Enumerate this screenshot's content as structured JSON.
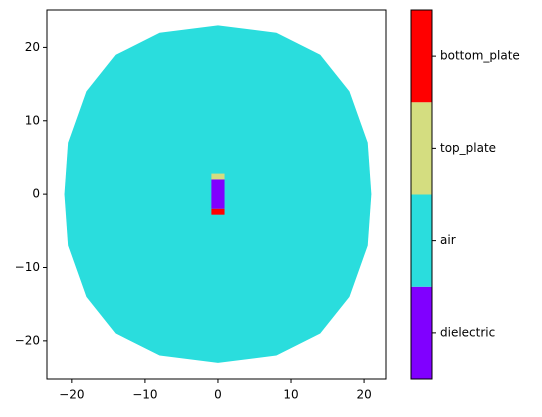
{
  "chart_data": {
    "type": "mesh",
    "xlim": [
      -23.4,
      23.0
    ],
    "ylim": [
      -25.2,
      25.1
    ],
    "xticks": [
      {
        "value": -20,
        "label": "−20"
      },
      {
        "value": -10,
        "label": "−10"
      },
      0,
      10,
      20
    ],
    "yticks": [
      {
        "value": -20,
        "label": "−20"
      },
      {
        "value": -10,
        "label": "−10"
      },
      0,
      10,
      20
    ],
    "series": [
      {
        "name": "dielectric",
        "color": "#8000ff",
        "x": [
          -0.9,
          0.9,
          0.9,
          -0.9
        ],
        "y": [
          -2,
          -2,
          2,
          2
        ]
      },
      {
        "name": "air",
        "color": "#2adddd",
        "x": [
          0,
          8,
          14,
          18,
          20.5,
          21,
          20.5,
          18,
          14,
          8,
          0,
          -8,
          -14,
          -18,
          -20.5,
          -21,
          -20.5,
          -18,
          -14,
          -8
        ],
        "y": [
          23,
          22,
          19,
          14,
          7,
          0,
          -7,
          -14,
          -19,
          -22,
          -23,
          -22,
          -19,
          -14,
          -7,
          0,
          7,
          14,
          19,
          22
        ]
      },
      {
        "name": "top_plate",
        "color": "#d4dd80",
        "x": [
          -0.9,
          0.9,
          0.9,
          -0.9
        ],
        "y": [
          2,
          2,
          2.8,
          2.8
        ]
      },
      {
        "name": "bottom_plate",
        "color": "#ff0000",
        "x": [
          -0.9,
          0.9,
          0.9,
          -0.9
        ],
        "y": [
          -2.8,
          -2.8,
          -2,
          -2
        ]
      }
    ]
  }
}
